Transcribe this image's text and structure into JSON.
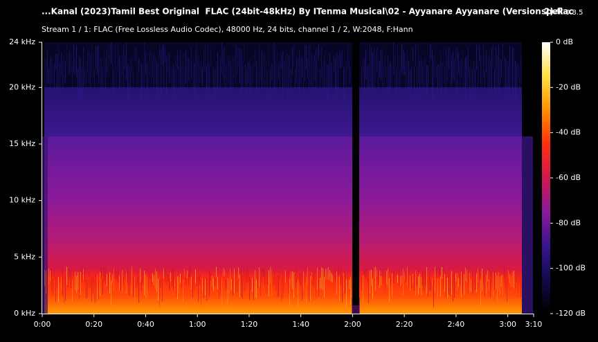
{
  "chart_data": {
    "type": "spectrogram",
    "title": "...Kanal (2023)Tamil Best Original  FLAC (24bit-48kHz) By ITenma Musical\\02 - Ayyanare Ayyanare (Version 2).flac",
    "app_name": "spek",
    "app_version": "0.8.5",
    "subtitle": "Stream 1 / 1: FLAC (Free Lossless Audio Codec), 48000 Hz, 24 bits, channel 1 / 2, W:2048, F:Hann",
    "xlim": [
      0,
      190
    ],
    "xticks": [
      {
        "value": 0,
        "label": "0:00"
      },
      {
        "value": 20,
        "label": "0:20"
      },
      {
        "value": 40,
        "label": "0:40"
      },
      {
        "value": 60,
        "label": "1:00"
      },
      {
        "value": 80,
        "label": "1:20"
      },
      {
        "value": 100,
        "label": "1:40"
      },
      {
        "value": 120,
        "label": "2:00"
      },
      {
        "value": 140,
        "label": "2:20"
      },
      {
        "value": 160,
        "label": "2:40"
      },
      {
        "value": 180,
        "label": "3:00"
      },
      {
        "value": 190,
        "label": "3:10"
      }
    ],
    "ylim": [
      0,
      24
    ],
    "yticks": [
      {
        "value": 0,
        "label": "0 kHz"
      },
      {
        "value": 5,
        "label": "5 kHz"
      },
      {
        "value": 10,
        "label": "10 kHz"
      },
      {
        "value": 15,
        "label": "15 kHz"
      },
      {
        "value": 20,
        "label": "20 kHz"
      },
      {
        "value": 24,
        "label": "24 kHz"
      }
    ],
    "colorbar_lim": [
      -120,
      0
    ],
    "colorbar_ticks": [
      {
        "value": 0,
        "label": "0 dB"
      },
      {
        "value": -20,
        "label": "-20 dB"
      },
      {
        "value": -40,
        "label": "-40 dB"
      },
      {
        "value": -60,
        "label": "-60 dB"
      },
      {
        "value": -80,
        "label": "-80 dB"
      },
      {
        "value": -100,
        "label": "-100 dB"
      },
      {
        "value": -120,
        "label": "-120 dB"
      }
    ],
    "colormap": [
      "#000000",
      "#120a4a",
      "#3a1490",
      "#8a1a9a",
      "#d01850",
      "#ff3010",
      "#ff9000",
      "#ffe040",
      "#ffffff"
    ]
  }
}
